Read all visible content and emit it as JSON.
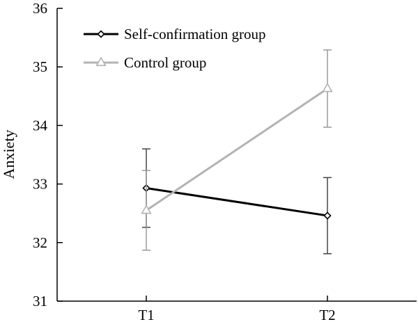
{
  "chart_data": {
    "type": "line",
    "title": "",
    "xlabel": "",
    "ylabel": "Anxiety",
    "categories": [
      "T1",
      "T2"
    ],
    "ylim": [
      31,
      36
    ],
    "yticks": [
      "31",
      "32",
      "33",
      "34",
      "35",
      "36"
    ],
    "grid": false,
    "legend_position": "top-left",
    "series": [
      {
        "name": "Self-confirmation group",
        "values": [
          32.93,
          32.46
        ],
        "error": [
          0.67,
          0.65
        ],
        "marker": "diamond",
        "color": "#000000"
      },
      {
        "name": "Control group",
        "values": [
          32.55,
          34.63
        ],
        "error": [
          0.68,
          0.66
        ],
        "marker": "triangle",
        "color": "#b3b3b3"
      }
    ]
  }
}
